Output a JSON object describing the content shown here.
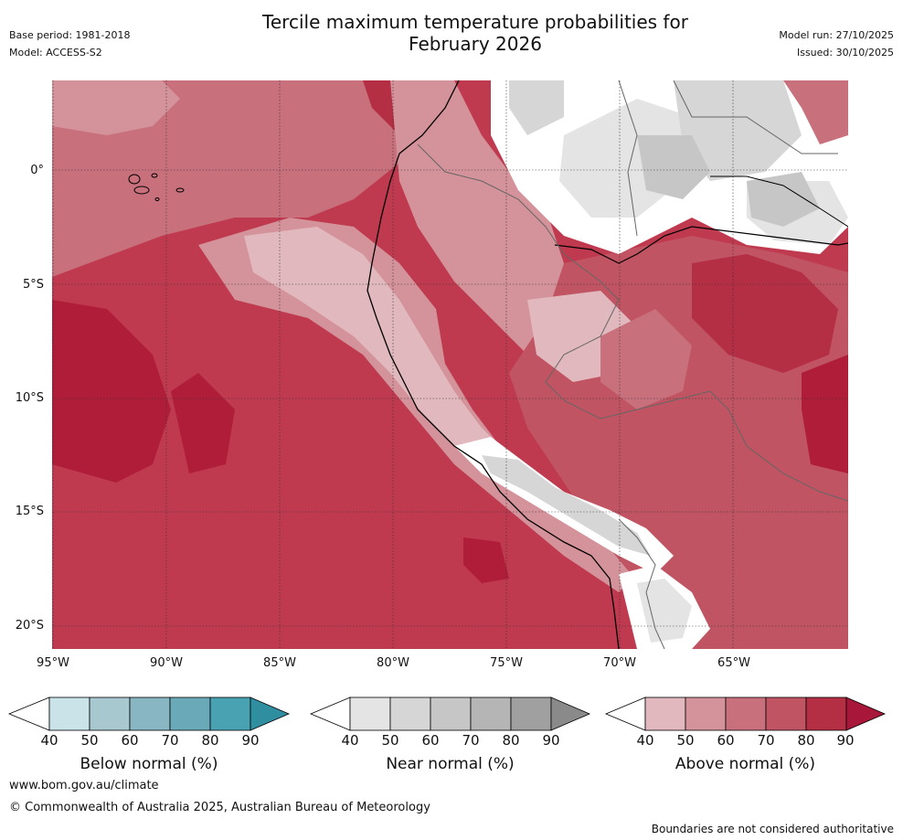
{
  "header": {
    "title_line1": "Tercile maximum temperature probabilities for",
    "title_line2": "February 2026",
    "base_period": "Base period: 1981-2018",
    "model": "Model: ACCESS-S2",
    "model_run": "Model run: 27/10/2025",
    "issued": "Issued: 30/10/2025"
  },
  "axes": {
    "y_ticks": [
      "0°",
      "5°S",
      "10°S",
      "15°S",
      "20°S"
    ],
    "x_ticks": [
      "95°W",
      "90°W",
      "85°W",
      "80°W",
      "75°W",
      "70°W",
      "65°W"
    ]
  },
  "legends": [
    {
      "label": "Below normal (%)",
      "ticks": [
        "40",
        "50",
        "60",
        "70",
        "80",
        "90"
      ],
      "colors": [
        "#c9e3e8",
        "#a7c8cf",
        "#88b7c3",
        "#6aaab8",
        "#48a2b2",
        "#2f8fa0"
      ]
    },
    {
      "label": "Near normal (%)",
      "ticks": [
        "40",
        "50",
        "60",
        "70",
        "80",
        "90"
      ],
      "colors": [
        "#e4e4e4",
        "#d6d6d6",
        "#c6c6c6",
        "#b5b5b5",
        "#a0a0a0",
        "#8a8a8a"
      ]
    },
    {
      "label": "Above normal (%)",
      "ticks": [
        "40",
        "50",
        "60",
        "70",
        "80",
        "90"
      ],
      "colors": [
        "#e0b8bd",
        "#d4929a",
        "#c8707c",
        "#c05462",
        "#b42e44",
        "#a8173a"
      ]
    }
  ],
  "footer": {
    "website": "www.bom.gov.au/climate",
    "copyright": "© Commonwealth of Australia 2025, Australian Bureau of Meteorology",
    "disclaimer": "Boundaries are not considered authoritative"
  }
}
